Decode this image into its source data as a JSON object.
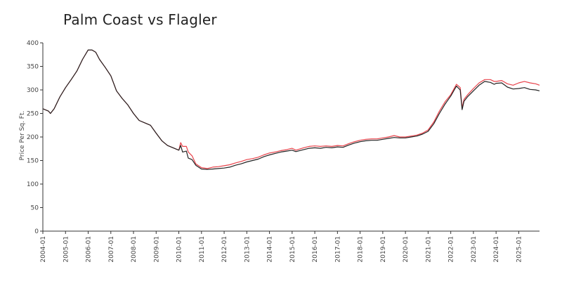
{
  "chart_data": {
    "type": "line",
    "title": "Palm Coast vs Flagler",
    "xlabel": "",
    "ylabel": "Price Per Sq. Ft.",
    "ylim": [
      0,
      400
    ],
    "yticks": [
      0,
      50,
      100,
      150,
      200,
      250,
      300,
      350,
      400
    ],
    "xticks": [
      "2004-01",
      "2005-01",
      "2006-01",
      "2007-01",
      "2008-01",
      "2009-01",
      "2010-01",
      "2011-01",
      "2012-01",
      "2013-01",
      "2014-01",
      "2015-01",
      "2016-01",
      "2017-01",
      "2018-01",
      "2019-01",
      "2020-01",
      "2021-01",
      "2022-01",
      "2023-01",
      "2024-01",
      "2025-01"
    ],
    "grid": false,
    "legend": "none",
    "series": [
      {
        "color": "#e8434b",
        "points": [
          [
            "2004-01",
            260
          ],
          [
            "2004-04",
            255
          ],
          [
            "2004-05",
            250
          ],
          [
            "2004-07",
            260
          ],
          [
            "2004-10",
            285
          ],
          [
            "2005-01",
            305
          ],
          [
            "2005-04",
            322
          ],
          [
            "2005-07",
            340
          ],
          [
            "2005-10",
            365
          ],
          [
            "2006-01",
            385
          ],
          [
            "2006-03",
            385
          ],
          [
            "2006-05",
            380
          ],
          [
            "2006-07",
            365
          ],
          [
            "2006-10",
            348
          ],
          [
            "2007-01",
            330
          ],
          [
            "2007-04",
            298
          ],
          [
            "2007-07",
            282
          ],
          [
            "2007-10",
            268
          ],
          [
            "2008-01",
            250
          ],
          [
            "2008-04",
            235
          ],
          [
            "2008-07",
            230
          ],
          [
            "2008-10",
            225
          ],
          [
            "2009-01",
            208
          ],
          [
            "2009-04",
            192
          ],
          [
            "2009-07",
            182
          ],
          [
            "2009-10",
            177
          ],
          [
            "2010-01",
            172
          ],
          [
            "2010-02",
            188
          ],
          [
            "2010-03",
            180
          ],
          [
            "2010-05",
            180
          ],
          [
            "2010-06",
            168
          ],
          [
            "2010-08",
            160
          ],
          [
            "2010-10",
            143
          ],
          [
            "2011-01",
            135
          ],
          [
            "2011-04",
            133
          ],
          [
            "2011-07",
            136
          ],
          [
            "2011-10",
            137
          ],
          [
            "2012-01",
            139
          ],
          [
            "2012-04",
            141
          ],
          [
            "2012-07",
            145
          ],
          [
            "2012-10",
            148
          ],
          [
            "2013-01",
            152
          ],
          [
            "2013-04",
            154
          ],
          [
            "2013-07",
            157
          ],
          [
            "2013-10",
            162
          ],
          [
            "2014-01",
            166
          ],
          [
            "2014-04",
            168
          ],
          [
            "2014-07",
            171
          ],
          [
            "2014-10",
            173
          ],
          [
            "2015-01",
            176
          ],
          [
            "2015-03",
            172
          ],
          [
            "2015-07",
            177
          ],
          [
            "2015-10",
            180
          ],
          [
            "2016-01",
            181
          ],
          [
            "2016-04",
            180
          ],
          [
            "2016-07",
            181
          ],
          [
            "2016-10",
            180
          ],
          [
            "2017-01",
            182
          ],
          [
            "2017-04",
            181
          ],
          [
            "2017-07",
            186
          ],
          [
            "2017-10",
            190
          ],
          [
            "2018-01",
            193
          ],
          [
            "2018-04",
            195
          ],
          [
            "2018-07",
            196
          ],
          [
            "2018-10",
            196
          ],
          [
            "2019-01",
            198
          ],
          [
            "2019-04",
            200
          ],
          [
            "2019-07",
            203
          ],
          [
            "2019-10",
            200
          ],
          [
            "2020-01",
            200
          ],
          [
            "2020-04",
            202
          ],
          [
            "2020-07",
            204
          ],
          [
            "2020-10",
            208
          ],
          [
            "2021-01",
            215
          ],
          [
            "2021-04",
            232
          ],
          [
            "2021-07",
            255
          ],
          [
            "2021-10",
            275
          ],
          [
            "2022-01",
            290
          ],
          [
            "2022-04",
            312
          ],
          [
            "2022-06",
            305
          ],
          [
            "2022-07",
            262
          ],
          [
            "2022-08",
            280
          ],
          [
            "2022-10",
            290
          ],
          [
            "2023-01",
            303
          ],
          [
            "2023-04",
            315
          ],
          [
            "2023-07",
            322
          ],
          [
            "2023-10",
            322
          ],
          [
            "2023-12",
            318
          ],
          [
            "2024-01",
            318
          ],
          [
            "2024-04",
            320
          ],
          [
            "2024-07",
            313
          ],
          [
            "2024-10",
            310
          ],
          [
            "2025-01",
            315
          ],
          [
            "2025-04",
            318
          ],
          [
            "2025-07",
            315
          ],
          [
            "2025-10",
            313
          ],
          [
            "2025-12",
            310
          ]
        ]
      },
      {
        "color": "#222222",
        "points": [
          [
            "2004-01",
            260
          ],
          [
            "2004-04",
            255
          ],
          [
            "2004-05",
            250
          ],
          [
            "2004-07",
            260
          ],
          [
            "2004-10",
            285
          ],
          [
            "2005-01",
            305
          ],
          [
            "2005-04",
            322
          ],
          [
            "2005-07",
            340
          ],
          [
            "2005-10",
            365
          ],
          [
            "2006-01",
            385
          ],
          [
            "2006-03",
            385
          ],
          [
            "2006-05",
            380
          ],
          [
            "2006-07",
            365
          ],
          [
            "2006-10",
            348
          ],
          [
            "2007-01",
            330
          ],
          [
            "2007-04",
            298
          ],
          [
            "2007-07",
            282
          ],
          [
            "2007-10",
            268
          ],
          [
            "2008-01",
            250
          ],
          [
            "2008-04",
            235
          ],
          [
            "2008-07",
            230
          ],
          [
            "2008-10",
            225
          ],
          [
            "2009-01",
            208
          ],
          [
            "2009-04",
            192
          ],
          [
            "2009-07",
            182
          ],
          [
            "2009-10",
            177
          ],
          [
            "2010-01",
            172
          ],
          [
            "2010-02",
            182
          ],
          [
            "2010-03",
            168
          ],
          [
            "2010-05",
            170
          ],
          [
            "2010-06",
            155
          ],
          [
            "2010-08",
            152
          ],
          [
            "2010-10",
            140
          ],
          [
            "2011-01",
            132
          ],
          [
            "2011-04",
            131
          ],
          [
            "2011-07",
            132
          ],
          [
            "2011-10",
            133
          ],
          [
            "2012-01",
            134
          ],
          [
            "2012-04",
            136
          ],
          [
            "2012-07",
            140
          ],
          [
            "2012-10",
            143
          ],
          [
            "2013-01",
            147
          ],
          [
            "2013-04",
            150
          ],
          [
            "2013-07",
            153
          ],
          [
            "2013-10",
            158
          ],
          [
            "2014-01",
            162
          ],
          [
            "2014-04",
            165
          ],
          [
            "2014-07",
            168
          ],
          [
            "2014-10",
            170
          ],
          [
            "2015-01",
            172
          ],
          [
            "2015-03",
            169
          ],
          [
            "2015-07",
            173
          ],
          [
            "2015-10",
            176
          ],
          [
            "2016-01",
            177
          ],
          [
            "2016-04",
            176
          ],
          [
            "2016-07",
            178
          ],
          [
            "2016-10",
            177
          ],
          [
            "2017-01",
            179
          ],
          [
            "2017-04",
            178
          ],
          [
            "2017-07",
            183
          ],
          [
            "2017-10",
            187
          ],
          [
            "2018-01",
            190
          ],
          [
            "2018-04",
            192
          ],
          [
            "2018-07",
            193
          ],
          [
            "2018-10",
            193
          ],
          [
            "2019-01",
            195
          ],
          [
            "2019-04",
            197
          ],
          [
            "2019-07",
            199
          ],
          [
            "2019-10",
            198
          ],
          [
            "2020-01",
            198
          ],
          [
            "2020-04",
            200
          ],
          [
            "2020-07",
            202
          ],
          [
            "2020-10",
            206
          ],
          [
            "2021-01",
            212
          ],
          [
            "2021-04",
            228
          ],
          [
            "2021-07",
            250
          ],
          [
            "2021-10",
            270
          ],
          [
            "2022-01",
            287
          ],
          [
            "2022-04",
            308
          ],
          [
            "2022-06",
            300
          ],
          [
            "2022-07",
            258
          ],
          [
            "2022-08",
            276
          ],
          [
            "2022-10",
            286
          ],
          [
            "2023-01",
            298
          ],
          [
            "2023-04",
            310
          ],
          [
            "2023-07",
            318
          ],
          [
            "2023-10",
            316
          ],
          [
            "2023-12",
            312
          ],
          [
            "2024-01",
            314
          ],
          [
            "2024-04",
            315
          ],
          [
            "2024-07",
            306
          ],
          [
            "2024-10",
            302
          ],
          [
            "2025-01",
            303
          ],
          [
            "2025-04",
            305
          ],
          [
            "2025-07",
            301
          ],
          [
            "2025-10",
            300
          ],
          [
            "2025-12",
            298
          ]
        ]
      }
    ]
  }
}
